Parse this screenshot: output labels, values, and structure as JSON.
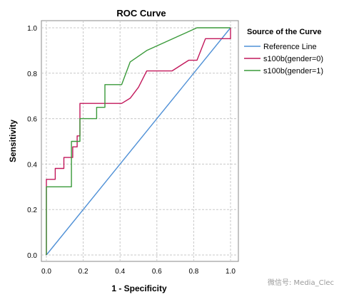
{
  "chart_data": {
    "type": "line",
    "title": "ROC Curve",
    "xlabel": "1 - Specificity",
    "ylabel": "Sensitivity",
    "xlim": [
      0,
      1
    ],
    "ylim": [
      0,
      1
    ],
    "x_ticks": [
      "0.0",
      "0.2",
      "0.4",
      "0.6",
      "0.8",
      "1.0"
    ],
    "y_ticks": [
      "0.0",
      "0.2",
      "0.4",
      "0.6",
      "0.8",
      "1.0"
    ],
    "grid": true,
    "legend_position": "right",
    "legend_title": "Source of the Curve",
    "series": [
      {
        "name": "Reference Line",
        "color": "#4f90d6",
        "points": [
          [
            0,
            0
          ],
          [
            1,
            1
          ]
        ]
      },
      {
        "name": "s100b(gender=0)",
        "color": "#c2185b",
        "points": [
          [
            0,
            0
          ],
          [
            0,
            0.333
          ],
          [
            0.048,
            0.333
          ],
          [
            0.048,
            0.381
          ],
          [
            0.095,
            0.381
          ],
          [
            0.095,
            0.429
          ],
          [
            0.143,
            0.429
          ],
          [
            0.143,
            0.476
          ],
          [
            0.167,
            0.476
          ],
          [
            0.167,
            0.524
          ],
          [
            0.182,
            0.524
          ],
          [
            0.182,
            0.667
          ],
          [
            0.409,
            0.667
          ],
          [
            0.455,
            0.69
          ],
          [
            0.5,
            0.738
          ],
          [
            0.545,
            0.81
          ],
          [
            0.682,
            0.81
          ],
          [
            0.773,
            0.857
          ],
          [
            0.818,
            0.857
          ],
          [
            0.864,
            0.952
          ],
          [
            1.0,
            0.952
          ],
          [
            1.0,
            1.0
          ]
        ]
      },
      {
        "name": "s100b(gender=1)",
        "color": "#3a9a3a",
        "points": [
          [
            0,
            0
          ],
          [
            0,
            0.3
          ],
          [
            0.136,
            0.3
          ],
          [
            0.136,
            0.5
          ],
          [
            0.182,
            0.5
          ],
          [
            0.182,
            0.6
          ],
          [
            0.273,
            0.6
          ],
          [
            0.273,
            0.65
          ],
          [
            0.318,
            0.65
          ],
          [
            0.318,
            0.75
          ],
          [
            0.409,
            0.75
          ],
          [
            0.455,
            0.85
          ],
          [
            0.545,
            0.9
          ],
          [
            0.818,
            1.0
          ],
          [
            1.0,
            1.0
          ]
        ]
      }
    ]
  },
  "watermark": "微信号: Media_Clec"
}
